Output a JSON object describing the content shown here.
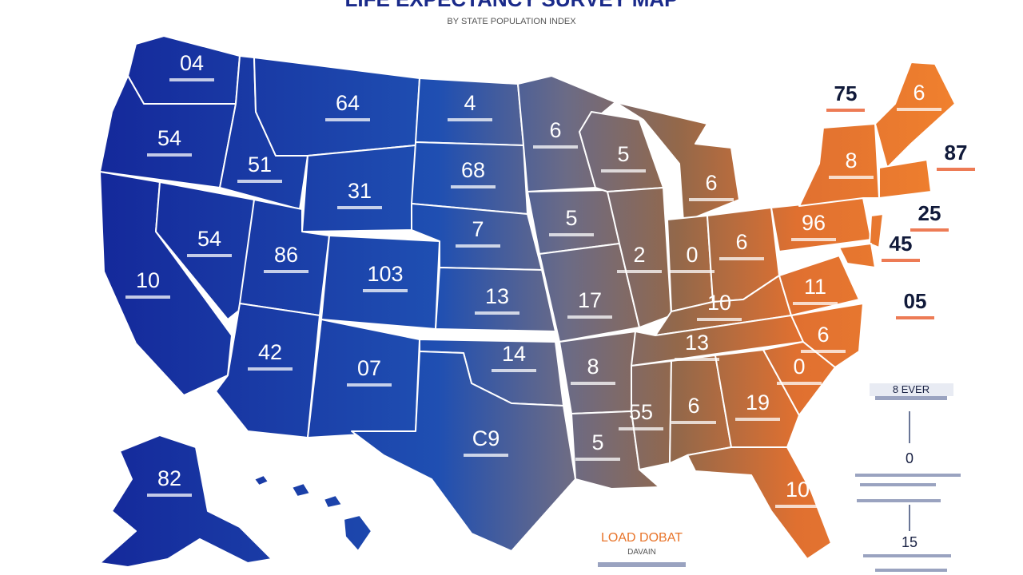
{
  "title": "LIFE EXPECTANCY SURVEY MAP",
  "subtitle": "BY STATE POPULATION INDEX",
  "colors": {
    "west": "#14289a",
    "central": "#1f4fb2",
    "midwest": "#6d6b8a",
    "mid_brown": "#8a6a55",
    "east": "#e8742a",
    "ink": "#111a3a"
  },
  "states": [
    {
      "id": "WA",
      "value": "04"
    },
    {
      "id": "OR",
      "value": "54"
    },
    {
      "id": "CA",
      "value": "10"
    },
    {
      "id": "ID",
      "value": "51"
    },
    {
      "id": "NV",
      "value": "54"
    },
    {
      "id": "MT",
      "value": "64"
    },
    {
      "id": "WY",
      "value": "31"
    },
    {
      "id": "UT",
      "value": "86"
    },
    {
      "id": "AZ",
      "value": "42"
    },
    {
      "id": "CO",
      "value": "103"
    },
    {
      "id": "NM",
      "value": "07"
    },
    {
      "id": "ND",
      "value": "4"
    },
    {
      "id": "SD",
      "value": "68"
    },
    {
      "id": "NE",
      "value": "7"
    },
    {
      "id": "KS",
      "value": "13"
    },
    {
      "id": "OK",
      "value": "14"
    },
    {
      "id": "TX",
      "value": "C9"
    },
    {
      "id": "MN",
      "value": "6"
    },
    {
      "id": "IA",
      "value": "5"
    },
    {
      "id": "MO",
      "value": "17"
    },
    {
      "id": "AR",
      "value": "8"
    },
    {
      "id": "LA",
      "value": "5"
    },
    {
      "id": "WI",
      "value": "5"
    },
    {
      "id": "IL",
      "value": "2"
    },
    {
      "id": "MI",
      "value": "6"
    },
    {
      "id": "IN",
      "value": "0"
    },
    {
      "id": "OH",
      "value": "6"
    },
    {
      "id": "KY",
      "value": "10"
    },
    {
      "id": "TN",
      "value": "13"
    },
    {
      "id": "MS",
      "value": "55"
    },
    {
      "id": "AL",
      "value": "6"
    },
    {
      "id": "GA",
      "value": "19"
    },
    {
      "id": "FL",
      "value": "10"
    },
    {
      "id": "SC",
      "value": "0"
    },
    {
      "id": "NC",
      "value": "6"
    },
    {
      "id": "VA",
      "value": "11"
    },
    {
      "id": "PA",
      "value": "96"
    },
    {
      "id": "NY",
      "value": "8"
    },
    {
      "id": "ME",
      "value": "6"
    },
    {
      "id": "AK",
      "value": "82"
    }
  ],
  "callouts": [
    {
      "id": "NE-region",
      "value": "75"
    },
    {
      "id": "MA",
      "value": "87"
    },
    {
      "id": "CT",
      "value": "25"
    },
    {
      "id": "NJ",
      "value": "45"
    },
    {
      "id": "DE",
      "value": "05"
    }
  ],
  "legend": {
    "header": "8 EVER",
    "mid_value": "0",
    "bottom_value": "15"
  },
  "footer": {
    "title": "LOAD DOBAT",
    "caption": "DAVAIN"
  }
}
